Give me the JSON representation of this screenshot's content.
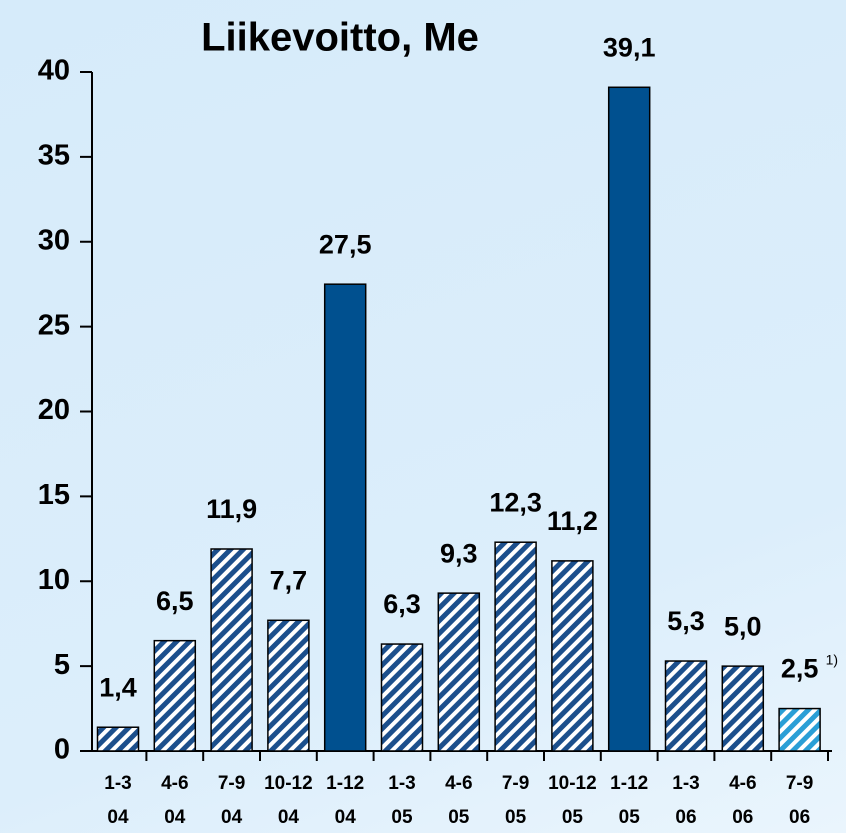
{
  "chart_data": {
    "type": "bar",
    "title": "Liikevoitto, Me",
    "categories": [
      "1-3 04",
      "4-6 04",
      "7-9 04",
      "10-12 04",
      "1-12 04",
      "1-3 05",
      "4-6 05",
      "7-9 05",
      "10-12 05",
      "1-12 05",
      "1-3 06",
      "4-6 06",
      "7-9 06"
    ],
    "values": [
      1.4,
      6.5,
      11.9,
      7.7,
      27.5,
      6.3,
      9.3,
      12.3,
      11.2,
      39.1,
      5.3,
      5.0,
      2.5
    ],
    "value_labels": [
      "1,4",
      "6,5",
      "11,9",
      "7,7",
      "27,5",
      "6,3",
      "9,3",
      "12,3",
      "11,2",
      "39,1",
      "5,3",
      "5,0",
      "2,5"
    ],
    "colors": [
      "#1c4f8c",
      "#1c4f8c",
      "#1c4f8c",
      "#1c4f8c",
      "#00508f",
      "#1c4f8c",
      "#1c4f8c",
      "#1c4f8c",
      "#1c4f8c",
      "#00508f",
      "#1c4f8c",
      "#1c4f8c",
      "#2a9fd6"
    ],
    "fills": [
      "hatch",
      "hatch",
      "hatch",
      "hatch",
      "solid",
      "hatch",
      "hatch",
      "hatch",
      "hatch",
      "solid",
      "hatch",
      "hatch",
      "hatch"
    ],
    "note": "1)",
    "ylim": [
      0,
      40
    ],
    "yticks": [
      0,
      5,
      10,
      15,
      20,
      25,
      30,
      35,
      40
    ],
    "grid": false
  }
}
